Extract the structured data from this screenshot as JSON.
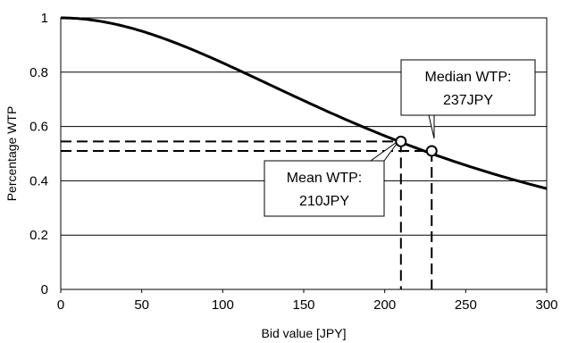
{
  "chart_data": {
    "type": "line",
    "title": "",
    "xlabel": "Bid value [JPY]",
    "ylabel": "Percentage WTP",
    "xlim": [
      0,
      300
    ],
    "ylim": [
      0,
      1
    ],
    "x_ticks": [
      0,
      50,
      100,
      150,
      200,
      250,
      300
    ],
    "y_ticks": [
      0,
      0.2,
      0.4,
      0.6,
      0.8,
      1
    ],
    "y_tick_labels": [
      "0",
      "0.2",
      "0.4",
      "0.6",
      "0.8",
      "1"
    ],
    "grid": "horizontal",
    "series": [
      {
        "x": [
          0,
          10,
          20,
          30,
          40,
          50,
          60,
          70,
          80,
          90,
          100,
          110,
          120,
          130,
          140,
          150,
          160,
          170,
          180,
          190,
          200,
          210,
          220,
          230,
          240,
          250,
          260,
          270,
          280,
          290,
          300
        ],
        "y": [
          1.0,
          0.998,
          0.993,
          0.985,
          0.973,
          0.958,
          0.939,
          0.918,
          0.893,
          0.866,
          0.837,
          0.806,
          0.774,
          0.741,
          0.707,
          0.674,
          0.641,
          0.609,
          0.578,
          0.548,
          0.519,
          0.548,
          0.519,
          0.51,
          0.49,
          0.47,
          0.45,
          0.43,
          0.415,
          0.4,
          0.39
        ]
      }
    ],
    "points": [
      {
        "x": 210,
        "y": 0.545
      },
      {
        "x": 229,
        "y": 0.51
      }
    ],
    "annotations": [
      {
        "line1": "Median WTP:",
        "line2": "237JPY"
      },
      {
        "line1": "Mean WTP:",
        "line2": "210JPY"
      }
    ],
    "colors": {
      "curve": "#000000",
      "grid": "#000000",
      "background": "#ffffff"
    }
  }
}
